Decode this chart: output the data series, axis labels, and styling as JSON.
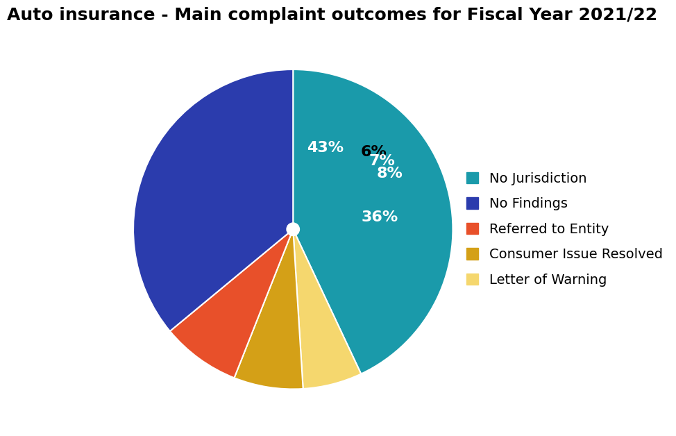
{
  "title": "Auto insurance - Main complaint outcomes for Fiscal Year 2021/22",
  "slices": [
    43,
    36,
    8,
    7,
    6
  ],
  "labels": [
    "No Jurisdiction",
    "No Findings",
    "Referred to Entity",
    "Consumer Issue Resolved",
    "Letter of Warning"
  ],
  "colors": [
    "#1a9aaa",
    "#2b3cad",
    "#e8502a",
    "#d4a017",
    "#f5d76e"
  ],
  "pct_labels": [
    "43%",
    "36%",
    "8%",
    "7%",
    "6%"
  ],
  "pct_colors": [
    "white",
    "white",
    "white",
    "white",
    "black"
  ],
  "title_fontsize": 18,
  "pct_fontsize": 16,
  "legend_fontsize": 14,
  "wedge_linewidth": 1.5,
  "wedge_linecolor": "white"
}
